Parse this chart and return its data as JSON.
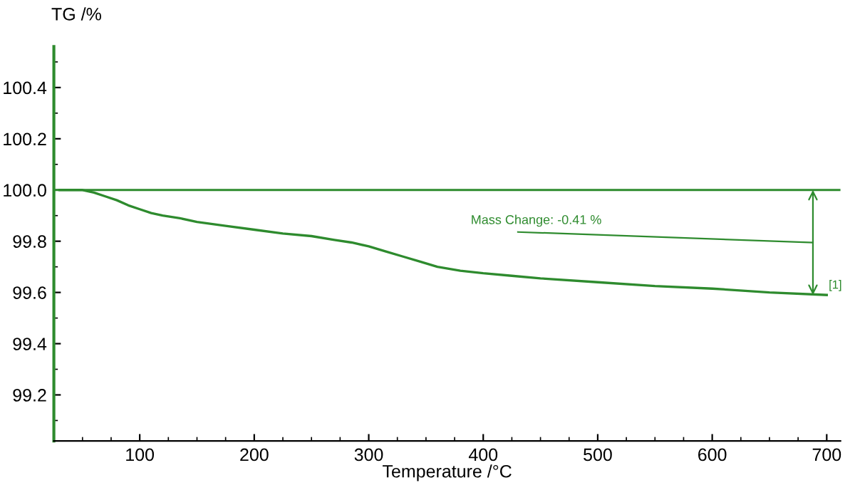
{
  "chart_data": {
    "type": "line",
    "xlabel": "Temperature /°C",
    "ylabel": "TG /%",
    "x": [
      30,
      50,
      60,
      70,
      80,
      90,
      100,
      110,
      120,
      135,
      150,
      175,
      200,
      225,
      250,
      270,
      285,
      300,
      315,
      330,
      345,
      360,
      380,
      400,
      425,
      450,
      500,
      550,
      600,
      650,
      700
    ],
    "series": [
      {
        "color": "#2e8b2e",
        "values": [
          100.0,
          100.0,
          99.99,
          99.975,
          99.96,
          99.94,
          99.925,
          99.91,
          99.9,
          99.89,
          99.875,
          99.86,
          99.845,
          99.83,
          99.82,
          99.805,
          99.795,
          99.78,
          99.76,
          99.74,
          99.72,
          99.7,
          99.685,
          99.675,
          99.665,
          99.655,
          99.64,
          99.625,
          99.615,
          99.6,
          99.59
        ]
      }
    ],
    "xlim": [
      25,
      712
    ],
    "ylim": [
      99.02,
      100.56
    ],
    "xticks": [
      100,
      200,
      300,
      400,
      500,
      600,
      700
    ],
    "yticks": [
      99.2,
      99.4,
      99.6,
      99.8,
      {
        "value": 100,
        "label": "100.0"
      },
      100.2,
      100.4
    ],
    "ref_lines": [
      {
        "axis": "y",
        "value": 100.0,
        "color": "#2e8b2e"
      }
    ],
    "annotations": [
      "Mass Change: -0.41 %",
      {
        "text": "[1]",
        "x": 700,
        "y": 99.59
      }
    ],
    "grid": false,
    "legend": false,
    "marker": "none",
    "line_style": "solid"
  }
}
